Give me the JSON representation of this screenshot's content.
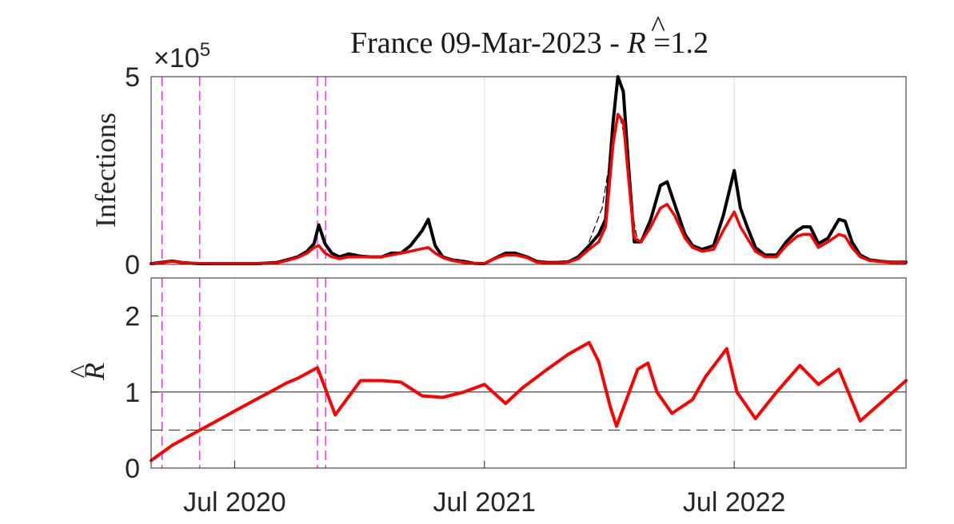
{
  "figure": {
    "title_prefix": "France 09-Mar-2023 - ",
    "title_symbol": "R",
    "title_hat": "^",
    "title_suffix": " =1.2"
  },
  "colors": {
    "infections": "#000000",
    "smoothed": "#ff0000",
    "events": "#ff00ff",
    "reference": "#262626",
    "grid": "#dfdfdf"
  },
  "chart_data": [
    {
      "type": "line",
      "ylabel": "Infections",
      "exponent_prefix": "×10",
      "exponent_power": "5",
      "ylim": [
        0,
        5
      ],
      "yticks": [
        "0",
        "5"
      ],
      "xlim": [
        "2020-03-01",
        "2023-03-09"
      ],
      "xticks": [
        "2020-07-01",
        "2021-07-01",
        "2022-07-01"
      ],
      "xtick_labels": [
        "Jul 2020",
        "Jul 2021",
        "Jul 2022"
      ],
      "grid": true,
      "event_lines": [
        "2020-03-17",
        "2020-05-11",
        "2020-10-30",
        "2020-11-11"
      ],
      "series": [
        {
          "style": "daily-black",
          "x": [
            "2020-03-01",
            "2020-03-15",
            "2020-04-01",
            "2020-04-15",
            "2020-05-01",
            "2020-05-15",
            "2020-06-01",
            "2020-07-01",
            "2020-08-01",
            "2020-09-01",
            "2020-09-15",
            "2020-10-01",
            "2020-10-15",
            "2020-10-25",
            "2020-11-01",
            "2020-11-10",
            "2020-11-20",
            "2020-12-01",
            "2020-12-15",
            "2021-01-01",
            "2021-01-15",
            "2021-02-01",
            "2021-02-15",
            "2021-03-01",
            "2021-03-15",
            "2021-04-01",
            "2021-04-10",
            "2021-04-20",
            "2021-05-01",
            "2021-05-15",
            "2021-06-01",
            "2021-06-15",
            "2021-07-01",
            "2021-07-15",
            "2021-08-01",
            "2021-08-15",
            "2021-09-01",
            "2021-09-15",
            "2021-10-01",
            "2021-10-15",
            "2021-11-01",
            "2021-11-15",
            "2021-12-01",
            "2021-12-15",
            "2021-12-25",
            "2022-01-05",
            "2022-01-12",
            "2022-01-20",
            "2022-01-28",
            "2022-02-05",
            "2022-02-15",
            "2022-03-01",
            "2022-03-15",
            "2022-03-25",
            "2022-04-05",
            "2022-04-20",
            "2022-05-01",
            "2022-05-15",
            "2022-06-01",
            "2022-06-15",
            "2022-07-01",
            "2022-07-10",
            "2022-07-20",
            "2022-08-01",
            "2022-08-15",
            "2022-09-01",
            "2022-09-15",
            "2022-10-01",
            "2022-10-10",
            "2022-10-20",
            "2022-11-01",
            "2022-11-15",
            "2022-12-01",
            "2022-12-10",
            "2022-12-20",
            "2023-01-01",
            "2023-01-15",
            "2023-02-01",
            "2023-02-15",
            "2023-03-09"
          ],
          "values": [
            0.02,
            0.05,
            0.09,
            0.05,
            0.03,
            0.02,
            0.02,
            0.02,
            0.02,
            0.05,
            0.12,
            0.2,
            0.35,
            0.55,
            1.05,
            0.55,
            0.3,
            0.2,
            0.28,
            0.22,
            0.2,
            0.2,
            0.3,
            0.3,
            0.5,
            0.9,
            1.2,
            0.5,
            0.2,
            0.12,
            0.08,
            0.03,
            0.02,
            0.15,
            0.3,
            0.3,
            0.2,
            0.08,
            0.05,
            0.05,
            0.07,
            0.2,
            0.5,
            0.8,
            1.2,
            3.8,
            5.0,
            4.6,
            2.5,
            0.6,
            0.6,
            1.2,
            2.1,
            2.2,
            1.6,
            0.8,
            0.5,
            0.4,
            0.5,
            1.3,
            2.5,
            1.5,
            1.0,
            0.45,
            0.25,
            0.25,
            0.6,
            0.9,
            1.0,
            1.0,
            0.55,
            0.7,
            1.2,
            1.15,
            0.6,
            0.25,
            0.12,
            0.08,
            0.06,
            0.06
          ]
        },
        {
          "style": "model-dashed",
          "x": [
            "2021-12-01",
            "2021-12-20",
            "2022-01-05",
            "2022-01-14",
            "2022-01-22",
            "2022-02-01",
            "2022-02-10"
          ],
          "values": [
            0.6,
            1.5,
            3.3,
            4.0,
            3.4,
            1.5,
            0.6
          ]
        },
        {
          "style": "smoothed-red",
          "x": [
            "2020-03-01",
            "2020-03-15",
            "2020-04-01",
            "2020-04-15",
            "2020-05-01",
            "2020-06-01",
            "2020-07-01",
            "2020-08-01",
            "2020-09-01",
            "2020-09-15",
            "2020-10-01",
            "2020-10-15",
            "2020-10-25",
            "2020-11-01",
            "2020-11-10",
            "2020-11-20",
            "2020-12-01",
            "2020-12-15",
            "2021-01-01",
            "2021-01-15",
            "2021-02-01",
            "2021-02-15",
            "2021-03-01",
            "2021-03-15",
            "2021-04-01",
            "2021-04-10",
            "2021-04-20",
            "2021-05-01",
            "2021-05-15",
            "2021-06-01",
            "2021-06-15",
            "2021-07-01",
            "2021-07-15",
            "2021-08-01",
            "2021-08-15",
            "2021-09-01",
            "2021-09-15",
            "2021-10-01",
            "2021-10-15",
            "2021-11-01",
            "2021-11-15",
            "2021-12-01",
            "2021-12-15",
            "2021-12-25",
            "2022-01-05",
            "2022-01-12",
            "2022-01-20",
            "2022-01-28",
            "2022-02-05",
            "2022-02-15",
            "2022-03-01",
            "2022-03-15",
            "2022-03-25",
            "2022-04-05",
            "2022-04-20",
            "2022-05-01",
            "2022-05-15",
            "2022-06-01",
            "2022-06-15",
            "2022-07-01",
            "2022-07-10",
            "2022-07-20",
            "2022-08-01",
            "2022-08-15",
            "2022-09-01",
            "2022-09-15",
            "2022-10-01",
            "2022-10-10",
            "2022-10-20",
            "2022-11-01",
            "2022-11-15",
            "2022-12-01",
            "2022-12-10",
            "2022-12-20",
            "2023-01-01",
            "2023-01-15",
            "2023-02-01",
            "2023-02-15",
            "2023-03-09"
          ],
          "values": [
            0.01,
            0.04,
            0.08,
            0.05,
            0.03,
            0.02,
            0.02,
            0.02,
            0.04,
            0.1,
            0.18,
            0.3,
            0.45,
            0.5,
            0.3,
            0.2,
            0.15,
            0.2,
            0.2,
            0.2,
            0.2,
            0.25,
            0.3,
            0.35,
            0.42,
            0.45,
            0.3,
            0.18,
            0.1,
            0.05,
            0.03,
            0.02,
            0.15,
            0.25,
            0.25,
            0.18,
            0.06,
            0.04,
            0.04,
            0.06,
            0.15,
            0.4,
            0.6,
            1.0,
            3.2,
            4.0,
            3.8,
            2.2,
            0.7,
            0.6,
            1.0,
            1.5,
            1.6,
            1.3,
            0.7,
            0.45,
            0.35,
            0.4,
            0.9,
            1.4,
            1.0,
            0.7,
            0.35,
            0.2,
            0.2,
            0.5,
            0.75,
            0.8,
            0.8,
            0.45,
            0.6,
            0.8,
            0.75,
            0.45,
            0.2,
            0.1,
            0.07,
            0.05,
            0.05
          ]
        }
      ]
    },
    {
      "type": "line",
      "ylabel": "R",
      "ylabel_hat": "^",
      "ylim": [
        0,
        2.5
      ],
      "yticks": [
        "0",
        "1",
        "2"
      ],
      "xlim": [
        "2020-03-01",
        "2023-03-09"
      ],
      "grid": true,
      "reference_lines": [
        {
          "y": 1,
          "style": "solid"
        },
        {
          "y": 0.5,
          "style": "dashed"
        }
      ],
      "event_lines": [
        "2020-03-17",
        "2020-05-11",
        "2020-10-30",
        "2020-11-11"
      ],
      "series": [
        {
          "style": "estimate-red",
          "x": [
            "2020-03-01",
            "2020-04-01",
            "2020-05-01",
            "2020-06-01",
            "2020-07-01",
            "2020-08-01",
            "2020-09-01",
            "2020-09-15",
            "2020-10-01",
            "2020-10-30",
            "2020-11-25",
            "2021-01-01",
            "2021-02-01",
            "2021-03-01",
            "2021-04-01",
            "2021-05-01",
            "2021-06-01",
            "2021-07-01",
            "2021-08-01",
            "2021-08-25",
            "2021-10-01",
            "2021-11-01",
            "2021-12-01",
            "2021-12-15",
            "2022-01-01",
            "2022-01-10",
            "2022-02-10",
            "2022-02-25",
            "2022-03-10",
            "2022-04-01",
            "2022-05-01",
            "2022-05-20",
            "2022-06-20",
            "2022-07-05",
            "2022-08-01",
            "2022-09-01",
            "2022-10-05",
            "2022-11-01",
            "2022-12-01",
            "2023-01-01",
            "2023-03-09"
          ],
          "values": [
            0.1,
            0.3,
            0.45,
            0.6,
            0.75,
            0.9,
            1.05,
            1.12,
            1.18,
            1.32,
            0.7,
            1.15,
            1.15,
            1.13,
            0.95,
            0.93,
            1.0,
            1.1,
            0.85,
            1.05,
            1.3,
            1.5,
            1.65,
            1.4,
            0.8,
            0.55,
            1.3,
            1.38,
            1.0,
            0.72,
            0.9,
            1.2,
            1.57,
            1.0,
            0.65,
            1.0,
            1.35,
            1.1,
            1.3,
            0.62,
            1.15
          ]
        }
      ]
    }
  ]
}
